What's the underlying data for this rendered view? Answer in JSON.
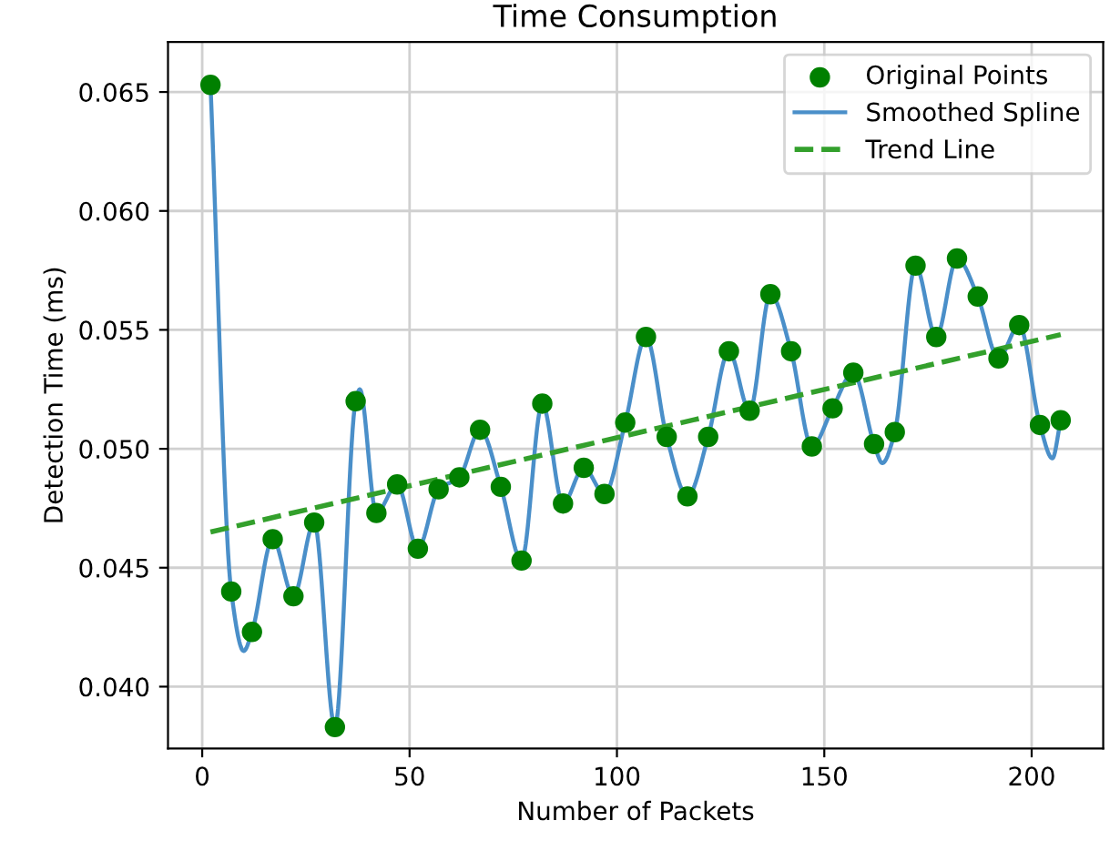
{
  "chart_data": {
    "type": "scatter",
    "title": "Time Consumption",
    "xlabel": "Number of Packets",
    "ylabel": "Detection Time (ms)",
    "x": [
      2,
      7,
      12,
      17,
      22,
      27,
      32,
      37,
      42,
      47,
      52,
      57,
      62,
      67,
      72,
      77,
      82,
      87,
      92,
      97,
      102,
      107,
      112,
      117,
      122,
      127,
      132,
      137,
      142,
      147,
      152,
      157,
      162,
      167,
      172,
      177,
      182,
      187,
      192,
      197,
      202,
      207
    ],
    "series": [
      {
        "name": "Original Points",
        "color": "#008000",
        "marker": "circle",
        "values": [
          0.0653,
          0.044,
          0.0423,
          0.0462,
          0.0438,
          0.0469,
          0.0383,
          0.052,
          0.0473,
          0.0485,
          0.0458,
          0.0483,
          0.0488,
          0.0508,
          0.0484,
          0.0453,
          0.0519,
          0.0477,
          0.0492,
          0.0481,
          0.0511,
          0.0547,
          0.0505,
          0.048,
          0.0505,
          0.0541,
          0.0516,
          0.0565,
          0.0541,
          0.0501,
          0.0517,
          0.0532,
          0.0502,
          0.0507,
          0.0577,
          0.0547,
          0.058,
          0.0564,
          0.0538,
          0.0552,
          0.051,
          0.0512
        ]
      },
      {
        "name": "Smoothed Spline",
        "type": "line",
        "color": "#4a8fc9",
        "line_style": "solid",
        "x": [
          2,
          7,
          10,
          12,
          17,
          22,
          27,
          32,
          37,
          38,
          42,
          47,
          52,
          57,
          62,
          67,
          72,
          77,
          82,
          87,
          92,
          97,
          102,
          107,
          112,
          117,
          122,
          127,
          132,
          137,
          142,
          147,
          152,
          157,
          162,
          164,
          167,
          172,
          177,
          182,
          187,
          192,
          197,
          202,
          205,
          207
        ],
        "values": [
          0.0653,
          0.044,
          0.0415,
          0.0423,
          0.0462,
          0.0438,
          0.0469,
          0.0383,
          0.052,
          0.0525,
          0.0473,
          0.0485,
          0.0458,
          0.0483,
          0.0488,
          0.0508,
          0.0484,
          0.0453,
          0.0519,
          0.0477,
          0.0492,
          0.0481,
          0.0511,
          0.0547,
          0.0505,
          0.048,
          0.0505,
          0.0541,
          0.0516,
          0.0565,
          0.0541,
          0.0501,
          0.0517,
          0.0532,
          0.0502,
          0.0494,
          0.0507,
          0.0577,
          0.0547,
          0.058,
          0.0564,
          0.0538,
          0.0552,
          0.051,
          0.0496,
          0.0512
        ]
      },
      {
        "name": "Trend Line",
        "type": "line",
        "color": "#33a02c",
        "line_style": "dashed",
        "x": [
          2,
          207
        ],
        "values": [
          0.0465,
          0.0548
        ]
      }
    ],
    "xlim": [
      -8.25,
      217.25
    ],
    "ylim": [
      0.0374,
      0.0671
    ],
    "xticks": [
      0,
      50,
      100,
      150,
      200
    ],
    "yticks": [
      {
        "value": 0.04,
        "label": "0.040"
      },
      {
        "value": 0.045,
        "label": "0.045"
      },
      {
        "value": 0.05,
        "label": "0.050"
      },
      {
        "value": 0.055,
        "label": "0.055"
      },
      {
        "value": 0.06,
        "label": "0.060"
      },
      {
        "value": 0.065,
        "label": "0.065"
      }
    ],
    "grid": true,
    "legend": "top right"
  }
}
